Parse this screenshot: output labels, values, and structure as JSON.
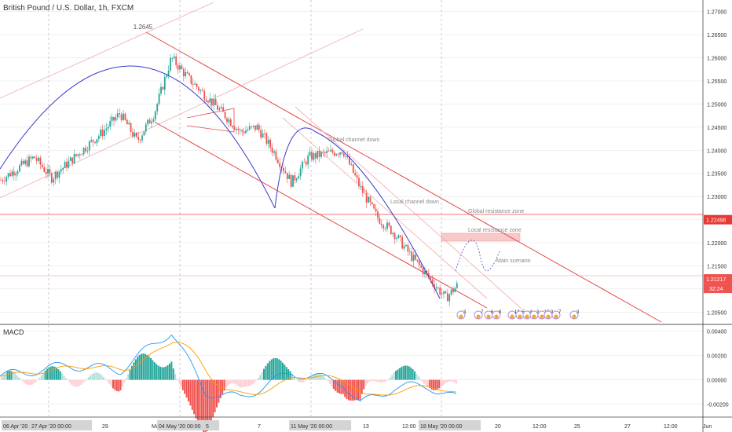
{
  "header": {
    "title": "British Pound / U.S. Dollar, 1h, FXCM"
  },
  "colors": {
    "bull": "#26a69a",
    "bear": "#ef5350",
    "arc": "#3a3ac8",
    "channel": "#e24a4a",
    "channel_light": "#f2b3b3",
    "resistance_zone": "#f8c9c9",
    "dotted_path": "#6a74d8",
    "macd_line": "#2196f3",
    "signal_line": "#ff9800",
    "grid": "#e6e6e6",
    "axis_text": "#333333",
    "label_text": "#888888"
  },
  "price_axis": {
    "ticks": [
      "1.27000",
      "1.26500",
      "1.26000",
      "1.25500",
      "1.25000",
      "1.24500",
      "1.24000",
      "1.23500",
      "1.23000",
      "1.22500",
      "1.22000",
      "1.21500",
      "1.21000",
      "1.20500"
    ],
    "resistance_tag": "1.22498",
    "current_tag": "1.21217",
    "countdown_tag": "32:24"
  },
  "macd": {
    "title": "MACD",
    "ticks": [
      "0.00400",
      "0.00200",
      "0.00000",
      "-0.00200"
    ]
  },
  "time_axis": {
    "labels": [
      {
        "t": "06 Apr '20",
        "boxed": true
      },
      {
        "t": "27 Apr '20  00:00",
        "boxed": true
      },
      {
        "t": "29",
        "boxed": false
      },
      {
        "t": "May",
        "boxed": false
      },
      {
        "t": "04 May '20  00:00",
        "boxed": true
      },
      {
        "t": "5",
        "boxed": false
      },
      {
        "t": "7",
        "boxed": false
      },
      {
        "t": "11 May '20  00:00",
        "boxed": true
      },
      {
        "t": "13",
        "boxed": false
      },
      {
        "t": "12:00",
        "boxed": false
      },
      {
        "t": "18 May '20  00:00",
        "boxed": true
      },
      {
        "t": "20",
        "boxed": false
      },
      {
        "t": "12:00",
        "boxed": false
      },
      {
        "t": "25",
        "boxed": false
      },
      {
        "t": "27",
        "boxed": false
      },
      {
        "t": "12:00",
        "boxed": false
      },
      {
        "t": "Jun",
        "boxed": false
      }
    ]
  },
  "annotations": {
    "peak_label": "1.2645",
    "global_channel": "Global channel down",
    "local_channel": "Local channel down",
    "global_resistance": "Global resistance zone",
    "local_resistance": "Local resistance zone",
    "main_scenario": "Main scenario"
  },
  "events": [
    "3",
    "7",
    "6",
    "8",
    "16",
    "5",
    "4",
    "3",
    "13",
    "3",
    "7",
    "3"
  ],
  "chart_data": {
    "type": "candlestick",
    "title": "British Pound / U.S. Dollar, 1h, FXCM",
    "x_range": [
      "2020-04-21",
      "2020-06-01"
    ],
    "y_range": [
      1.2025,
      1.2725
    ],
    "levels": {
      "global_resistance": 1.22498,
      "current": 1.21217,
      "peak": 1.2645
    },
    "price_path": [
      {
        "d": "2020-04-21",
        "p": 1.2335
      },
      {
        "d": "2020-04-23",
        "p": 1.2385
      },
      {
        "d": "2020-04-24",
        "p": 1.234
      },
      {
        "d": "2020-04-27",
        "p": 1.244
      },
      {
        "d": "2020-04-28",
        "p": 1.248
      },
      {
        "d": "2020-04-29",
        "p": 1.242
      },
      {
        "d": "2020-04-30",
        "p": 1.248
      },
      {
        "d": "2020-05-01",
        "p": 1.26
      },
      {
        "d": "2020-05-02",
        "p": 1.2555
      },
      {
        "d": "2020-05-04",
        "p": 1.248
      },
      {
        "d": "2020-05-05",
        "p": 1.244
      },
      {
        "d": "2020-05-06",
        "p": 1.245
      },
      {
        "d": "2020-05-07",
        "p": 1.2395
      },
      {
        "d": "2020-05-08",
        "p": 1.233
      },
      {
        "d": "2020-05-09",
        "p": 1.2385
      },
      {
        "d": "2020-05-11",
        "p": 1.24
      },
      {
        "d": "2020-05-12",
        "p": 1.232
      },
      {
        "d": "2020-05-13",
        "p": 1.2255
      },
      {
        "d": "2020-05-14",
        "p": 1.222
      },
      {
        "d": "2020-05-15",
        "p": 1.217
      },
      {
        "d": "2020-05-17",
        "p": 1.208
      },
      {
        "d": "2020-05-18",
        "p": 1.2121
      }
    ],
    "macd_range": [
      -0.003,
      0.0045
    ],
    "macd_path": [
      {
        "d": "2020-04-21",
        "m": 0.0003
      },
      {
        "d": "2020-04-25",
        "m": 0.0012
      },
      {
        "d": "2020-04-28",
        "m": 0.0008
      },
      {
        "d": "2020-05-01",
        "m": 0.004
      },
      {
        "d": "2020-05-03",
        "m": -0.001
      },
      {
        "d": "2020-05-05",
        "m": -0.0015
      },
      {
        "d": "2020-05-08",
        "m": 0.0006
      },
      {
        "d": "2020-05-11",
        "m": -0.0002
      },
      {
        "d": "2020-05-12",
        "m": -0.002
      },
      {
        "d": "2020-05-14",
        "m": -0.0006
      },
      {
        "d": "2020-05-16",
        "m": -0.0005
      },
      {
        "d": "2020-05-18",
        "m": -0.0018
      }
    ]
  }
}
